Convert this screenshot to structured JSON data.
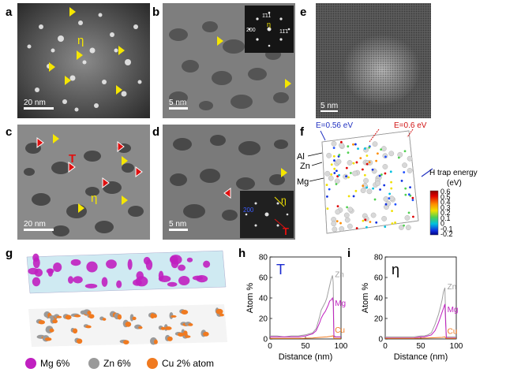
{
  "panels": {
    "a": {
      "label": "a",
      "scale": "20 nm",
      "phase": "η"
    },
    "b": {
      "label": "b",
      "scale": "5 nm",
      "inset_spots": [
        "1̄11",
        "11̄1",
        "200"
      ],
      "inset_eta": "η"
    },
    "c": {
      "label": "c",
      "scale": "20 nm",
      "phase_T": "T",
      "phase_eta": "η"
    },
    "d": {
      "label": "d",
      "scale": "5 nm",
      "inset_200": "200",
      "inset_eta": "η",
      "inset_T": "T"
    },
    "e": {
      "label": "e",
      "scale": "5 nm"
    },
    "f": {
      "label": "f",
      "e_low": "E=0.56 eV",
      "e_high": "E=0.6 eV",
      "atoms": [
        "Al",
        "Zn",
        "Mg"
      ],
      "colorbar_title": "H trap energy",
      "colorbar_unit": "(eV)",
      "colorbar_ticks": [
        "0.6",
        "0.5",
        "0.4",
        "0.3",
        "0.2",
        "0.1",
        "0",
        "-0.1",
        "-0.2"
      ]
    },
    "g": {
      "label": "g",
      "legend": [
        {
          "text": "Mg 6%",
          "color": "#c020c0"
        },
        {
          "text": "Zn 6%",
          "color": "#9a9a9a"
        },
        {
          "text": "Cu 2% atom",
          "color": "#f07a20"
        }
      ]
    },
    "h": {
      "label": "h",
      "phase": "T"
    },
    "i": {
      "label": "i",
      "phase": "η"
    }
  },
  "chart_data": [
    {
      "type": "line",
      "panel": "h",
      "xlabel": "Distance (nm)",
      "ylabel": "Atom %",
      "xlim": [
        0,
        100
      ],
      "ylim": [
        0,
        80
      ],
      "xticks": [
        0,
        50,
        100
      ],
      "yticks": [
        0,
        20,
        40,
        60,
        80
      ],
      "phase": "T",
      "series": [
        {
          "name": "Zn",
          "color": "#a0a0a0",
          "x": [
            0,
            10,
            20,
            30,
            40,
            50,
            55,
            60,
            65,
            70,
            72,
            75,
            78,
            80,
            82,
            84,
            86,
            88,
            89,
            90,
            91,
            92,
            95,
            100
          ],
          "y": [
            3,
            3,
            2,
            3,
            3,
            4,
            5,
            6,
            10,
            22,
            28,
            32,
            36,
            40,
            46,
            52,
            58,
            62,
            55,
            3,
            3,
            2,
            2,
            2
          ]
        },
        {
          "name": "Mg",
          "color": "#c020c0",
          "x": [
            0,
            10,
            20,
            30,
            40,
            50,
            55,
            60,
            65,
            70,
            72,
            75,
            78,
            80,
            82,
            84,
            86,
            88,
            89,
            90,
            91,
            92,
            95,
            100
          ],
          "y": [
            2,
            2,
            2,
            2,
            2,
            3,
            4,
            5,
            8,
            16,
            20,
            24,
            27,
            30,
            33,
            37,
            38,
            40,
            36,
            2,
            2,
            2,
            2,
            2
          ]
        },
        {
          "name": "Cu",
          "color": "#f07a20",
          "x": [
            0,
            20,
            40,
            60,
            70,
            80,
            85,
            88,
            89,
            90,
            91,
            92,
            95,
            100
          ],
          "y": [
            0.5,
            0.5,
            0.5,
            1,
            1.5,
            2,
            2.5,
            3,
            3,
            0.5,
            0.5,
            0.5,
            0.5,
            0.5
          ]
        }
      ]
    },
    {
      "type": "line",
      "panel": "i",
      "xlabel": "Distance (nm)",
      "ylabel": "Atom %",
      "xlim": [
        0,
        100
      ],
      "ylim": [
        0,
        80
      ],
      "xticks": [
        0,
        50,
        100
      ],
      "yticks": [
        0,
        20,
        40,
        60,
        80
      ],
      "phase": "η",
      "series": [
        {
          "name": "Zn",
          "color": "#a0a0a0",
          "x": [
            0,
            10,
            20,
            30,
            40,
            50,
            55,
            60,
            65,
            70,
            72,
            75,
            78,
            80,
            82,
            84,
            85,
            86,
            88,
            90,
            95,
            100
          ],
          "y": [
            2,
            2,
            2,
            2,
            2,
            3,
            3,
            4,
            6,
            14,
            18,
            24,
            32,
            38,
            46,
            50,
            22,
            2,
            2,
            2,
            2,
            2
          ]
        },
        {
          "name": "Mg",
          "color": "#c020c0",
          "x": [
            0,
            10,
            20,
            30,
            40,
            50,
            55,
            60,
            65,
            70,
            72,
            75,
            78,
            80,
            82,
            84,
            85,
            86,
            88,
            90,
            95,
            100
          ],
          "y": [
            1,
            1,
            1,
            1,
            1,
            2,
            2,
            3,
            4,
            8,
            11,
            16,
            22,
            26,
            30,
            34,
            16,
            1,
            1,
            1,
            1,
            1
          ]
        },
        {
          "name": "Cu",
          "color": "#f07a20",
          "x": [
            0,
            20,
            40,
            60,
            70,
            80,
            84,
            85,
            86,
            90,
            100
          ],
          "y": [
            0.5,
            0.5,
            0.5,
            1,
            1.2,
            1.5,
            2,
            1,
            0.5,
            0.5,
            0.5
          ]
        }
      ]
    }
  ]
}
